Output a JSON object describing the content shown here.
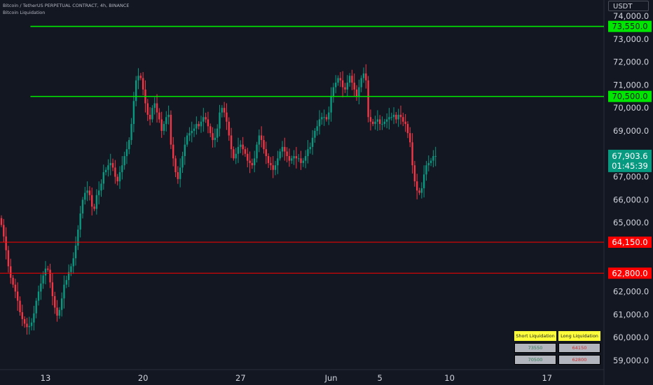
{
  "header": {
    "symbol_line": "Bitcoin / TetherUS PERPETUAL CONTRACT, 4h, BINANCE",
    "indicator_name": "Bitcoin Liquidation"
  },
  "currency_label": "USDT",
  "colors": {
    "background": "#131722",
    "up": "#089981",
    "down": "#f23645",
    "short_level": "#00e600",
    "long_level": "#ff0000",
    "axis_text": "#d1d4dc"
  },
  "chart_data": {
    "type": "candlestick",
    "ylim": [
      58600,
      74700
    ],
    "x_tick_labels": [
      {
        "label": "13",
        "index": 19
      },
      {
        "label": "20",
        "index": 61
      },
      {
        "label": "27",
        "index": 103
      },
      {
        "label": "Jun",
        "index": 142
      },
      {
        "label": "5",
        "index": 163
      },
      {
        "label": "10",
        "index": 193
      },
      {
        "label": "17",
        "index": 235
      }
    ],
    "y_tick_labels": [
      "59,000.0",
      "60,000.0",
      "61,000.0",
      "62,000.0",
      "63,000.0",
      "64,000.0",
      "65,000.0",
      "66,000.0",
      "67,000.0",
      "68,000.0",
      "69,000.0",
      "70,000.0",
      "71,000.0",
      "72,000.0",
      "73,000.0",
      "74,000.0"
    ],
    "y_tick_values": [
      59000,
      60000,
      61000,
      62000,
      63000,
      64000,
      65000,
      66000,
      67000,
      68000,
      69000,
      70000,
      71000,
      72000,
      73000,
      74000
    ],
    "levels": [
      {
        "kind": "short",
        "value": 73550,
        "label": "73,550.0",
        "start_index": 11
      },
      {
        "kind": "short",
        "value": 70500,
        "label": "70,500.0",
        "start_index": 11
      },
      {
        "kind": "long",
        "value": 64150,
        "label": "64,150.0",
        "start_index": 0
      },
      {
        "kind": "long",
        "value": 62800,
        "label": "62,800.0",
        "start_index": 0
      }
    ],
    "last_price": {
      "value": 67903.6,
      "label": "67,903.6",
      "countdown": "01:45:39"
    },
    "candle_count": 206,
    "closes": [
      64900,
      64400,
      63800,
      63100,
      62600,
      62300,
      62000,
      61600,
      61100,
      60800,
      60600,
      60450,
      60500,
      60650,
      61050,
      61600,
      62000,
      62350,
      62700,
      63000,
      62950,
      62400,
      61800,
      61300,
      60950,
      61200,
      61700,
      62300,
      62500,
      62850,
      63100,
      63450,
      64000,
      64700,
      65400,
      66000,
      66300,
      66400,
      66200,
      65700,
      65600,
      66200,
      66400,
      66700,
      67200,
      67300,
      67500,
      67600,
      67400,
      67000,
      66800,
      67200,
      67500,
      67900,
      68200,
      68600,
      69300,
      70300,
      71200,
      71400,
      71300,
      70800,
      70200,
      69700,
      69500,
      70000,
      70200,
      69800,
      69500,
      69000,
      69300,
      69600,
      69700,
      68400,
      67800,
      67200,
      66900,
      67400,
      67900,
      68400,
      68800,
      68900,
      69000,
      69100,
      69300,
      69200,
      69400,
      69600,
      69500,
      69200,
      68900,
      68600,
      68700,
      69100,
      69800,
      70000,
      69800,
      69400,
      68800,
      68200,
      67800,
      68000,
      68300,
      68400,
      68200,
      68000,
      67700,
      67600,
      67500,
      67800,
      68400,
      68800,
      68600,
      68200,
      67900,
      67600,
      67500,
      67300,
      67500,
      67800,
      68100,
      68300,
      68100,
      67900,
      67700,
      67800,
      67900,
      67800,
      67800,
      67600,
      67700,
      67900,
      68200,
      68300,
      68700,
      69000,
      69200,
      69500,
      69600,
      69600,
      69500,
      69800,
      70500,
      70900,
      71100,
      71300,
      71200,
      70900,
      70800,
      71100,
      71400,
      71100,
      70800,
      70500,
      70900,
      71300,
      71500,
      71200,
      69600,
      69400,
      69300,
      69400,
      69500,
      69300,
      69300,
      69400,
      69500,
      69600,
      69600,
      69700,
      69500,
      69700,
      69600,
      69400,
      69300,
      68900,
      68500,
      67500,
      66800,
      66400,
      66300,
      66500,
      67100,
      67500,
      67600,
      67700,
      67900,
      67903.6
    ]
  },
  "liquidation_table": {
    "short_header": "Short Liquidation",
    "long_header": "Long Liquidation",
    "rows": [
      {
        "short": "73550",
        "long": "64150"
      },
      {
        "short": "70500",
        "long": "62800"
      }
    ]
  }
}
